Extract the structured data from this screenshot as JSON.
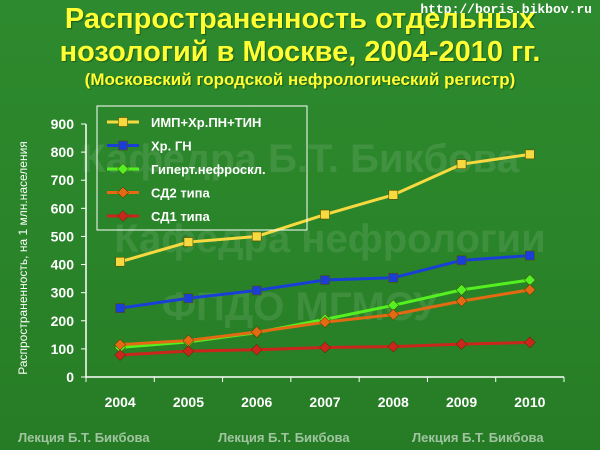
{
  "header": {
    "title_line1": "Распространенность отдельных",
    "title_line2": "нозологий в Москве, 2004-2010 гг.",
    "subtitle": "(Московский городской нефрологический регистр)",
    "url": "http://boris.bikbov.ru"
  },
  "watermark": {
    "line1": "Кафедра Б.Т. Бикбова",
    "line2": "Кафедра нефрологии",
    "line3": "ФПДО МГМСУ"
  },
  "footer": {
    "lecture_labels": [
      "Лекция Б.Т. Бикбова",
      "Лекция Б.Т. Бикбова",
      "Лекция Б.Т. Бикбова"
    ]
  },
  "colors": {
    "axis": "#ffffff",
    "legend_border": "#ffffff"
  },
  "chart_data": {
    "type": "line",
    "ylabel": "Распространенность, на 1 млн.населения",
    "xlabel": "",
    "categories": [
      "2004",
      "2005",
      "2006",
      "2007",
      "2008",
      "2009",
      "2010"
    ],
    "ylim": [
      0,
      900
    ],
    "yticks": [
      0,
      100,
      200,
      300,
      400,
      500,
      600,
      700,
      800,
      900
    ],
    "grid": false,
    "legend_position": "top-left",
    "series": [
      {
        "name": "ИМП+Хр.ПН+ТИН",
        "color": "#f7d940",
        "marker": "square",
        "values": [
          410,
          480,
          500,
          578,
          648,
          757,
          792
        ]
      },
      {
        "name": "Хр. ГН",
        "color": "#1a3fd6",
        "marker": "square",
        "values": [
          245,
          280,
          308,
          345,
          353,
          415,
          432
        ]
      },
      {
        "name": "Гиперт.нефроскл.",
        "color": "#55f020",
        "marker": "diamond",
        "values": [
          105,
          125,
          158,
          205,
          255,
          310,
          345
        ]
      },
      {
        "name": "СД2 типа",
        "color": "#e36a12",
        "marker": "diamond",
        "values": [
          115,
          130,
          160,
          195,
          222,
          270,
          310
        ]
      },
      {
        "name": "СД1 типа",
        "color": "#c9261c",
        "marker": "diamond",
        "values": [
          78,
          92,
          97,
          105,
          108,
          117,
          123
        ]
      }
    ]
  }
}
